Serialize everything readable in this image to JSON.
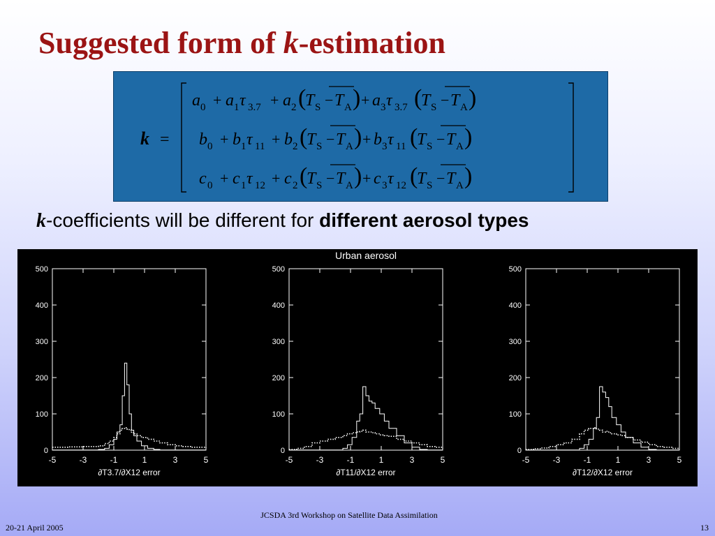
{
  "slide": {
    "title_prefix": "Suggested form of ",
    "title_var": "k",
    "title_suffix": "-estimation",
    "subtitle_var": "k",
    "subtitle_text": "-coefficients will be different for ",
    "subtitle_bold": "different aerosol types",
    "footer_center": "JCSDA 3rd Workshop on Satellite Data Assimilation",
    "footer_left": "20-21 April 2005",
    "footer_right": "13",
    "colors": {
      "title": "#9b1414",
      "equation_box": "#1e6aa6"
    }
  },
  "equation": {
    "lhs": "k =",
    "rows": [
      {
        "coef": [
          "a",
          "a",
          "a",
          "a"
        ],
        "tau_sub": "3.7"
      },
      {
        "coef": [
          "b",
          "b",
          "b",
          "b"
        ],
        "tau_sub": "11"
      },
      {
        "coef": [
          "c",
          "c",
          "c",
          "c"
        ],
        "tau_sub": "12"
      }
    ],
    "subscripts": [
      "0",
      "1",
      "2",
      "3"
    ],
    "ts": "T",
    "ts_sub": "S",
    "ta": "T",
    "ta_sub": "A",
    "tau": "τ"
  },
  "chart_data": [
    {
      "type": "histogram",
      "title": "",
      "xlabel": "∂T3.7/∂X12 error",
      "x_ticks": [
        "-5",
        "-3",
        "-1",
        "1",
        "3",
        "5"
      ],
      "y_ticks": [
        "0",
        "100",
        "200",
        "300",
        "400",
        "500"
      ],
      "xlim": [
        -5,
        5
      ],
      "ylim": [
        0,
        500
      ],
      "series": [
        {
          "style": "solid",
          "x": [
            -5.0,
            -4.5,
            -4.0,
            -3.5,
            -3.0,
            -2.5,
            -2.0,
            -1.6,
            -1.3,
            -1.0,
            -0.8,
            -0.6,
            -0.45,
            -0.3,
            -0.15,
            0.0,
            0.15,
            0.3,
            0.5,
            0.8,
            1.2,
            1.6,
            2.0,
            2.5,
            3.0,
            3.5,
            4.0,
            4.5,
            5.0
          ],
          "y": [
            0,
            0,
            0,
            0,
            0,
            0,
            2,
            5,
            15,
            30,
            50,
            70,
            150,
            240,
            180,
            100,
            55,
            40,
            25,
            12,
            5,
            2,
            0,
            0,
            0,
            0,
            0,
            0,
            0
          ]
        },
        {
          "style": "dotted",
          "x": [
            -5.0,
            -4.5,
            -4.0,
            -3.5,
            -3.0,
            -2.5,
            -2.0,
            -1.6,
            -1.3,
            -1.0,
            -0.8,
            -0.6,
            -0.45,
            -0.3,
            -0.15,
            0.0,
            0.15,
            0.3,
            0.5,
            0.8,
            1.2,
            1.6,
            2.0,
            2.5,
            3.0,
            3.5,
            4.0,
            4.5,
            5.0
          ],
          "y": [
            8,
            8,
            9,
            9,
            10,
            10,
            12,
            18,
            25,
            35,
            45,
            55,
            60,
            62,
            58,
            55,
            48,
            45,
            40,
            35,
            30,
            25,
            20,
            15,
            12,
            10,
            8,
            8,
            6
          ]
        }
      ]
    },
    {
      "type": "histogram",
      "title": "Urban aerosol",
      "xlabel": "∂T11/∂X12 error",
      "x_ticks": [
        "-5",
        "-3",
        "-1",
        "1",
        "3",
        "5"
      ],
      "y_ticks": [
        "0",
        "100",
        "200",
        "300",
        "400",
        "500"
      ],
      "xlim": [
        -5,
        5
      ],
      "ylim": [
        0,
        500
      ],
      "series": [
        {
          "style": "solid",
          "x": [
            -5.0,
            -4.5,
            -4.0,
            -3.5,
            -3.0,
            -2.5,
            -2.0,
            -1.5,
            -1.2,
            -0.9,
            -0.6,
            -0.4,
            -0.2,
            0.0,
            0.2,
            0.4,
            0.6,
            0.9,
            1.2,
            1.5,
            2.0,
            2.5,
            3.0,
            3.5,
            4.0,
            4.5,
            5.0
          ],
          "y": [
            0,
            0,
            0,
            0,
            0,
            0,
            0,
            5,
            15,
            35,
            80,
            100,
            175,
            150,
            135,
            130,
            115,
            100,
            80,
            60,
            40,
            20,
            8,
            2,
            0,
            0,
            0
          ]
        },
        {
          "style": "dotted",
          "x": [
            -5.0,
            -4.5,
            -4.0,
            -3.5,
            -3.0,
            -2.5,
            -2.0,
            -1.5,
            -1.2,
            -0.9,
            -0.6,
            -0.4,
            -0.2,
            0.0,
            0.2,
            0.4,
            0.6,
            0.9,
            1.2,
            1.5,
            2.0,
            2.5,
            3.0,
            3.5,
            4.0,
            4.5,
            5.0
          ],
          "y": [
            2,
            5,
            10,
            20,
            25,
            30,
            35,
            40,
            45,
            48,
            50,
            52,
            55,
            50,
            50,
            48,
            45,
            42,
            40,
            38,
            30,
            25,
            20,
            15,
            10,
            8,
            5
          ]
        }
      ]
    },
    {
      "type": "histogram",
      "title": "",
      "xlabel": "∂T12/∂X12 error",
      "x_ticks": [
        "-5",
        "-3",
        "-1",
        "1",
        "3",
        "5"
      ],
      "y_ticks": [
        "0",
        "100",
        "200",
        "300",
        "400",
        "500"
      ],
      "xlim": [
        -5,
        5
      ],
      "ylim": [
        0,
        500
      ],
      "series": [
        {
          "style": "solid",
          "x": [
            -5.0,
            -4.5,
            -4.0,
            -3.5,
            -3.0,
            -2.5,
            -2.0,
            -1.5,
            -1.2,
            -0.9,
            -0.6,
            -0.4,
            -0.2,
            0.0,
            0.2,
            0.4,
            0.6,
            0.9,
            1.2,
            1.5,
            2.0,
            2.5,
            3.0,
            3.5,
            4.0,
            4.5,
            5.0
          ],
          "y": [
            0,
            0,
            0,
            0,
            0,
            0,
            0,
            5,
            15,
            30,
            60,
            90,
            175,
            160,
            145,
            120,
            90,
            70,
            50,
            35,
            20,
            8,
            2,
            0,
            0,
            0,
            0
          ]
        },
        {
          "style": "dotted",
          "x": [
            -5.0,
            -4.5,
            -4.0,
            -3.5,
            -3.0,
            -2.5,
            -2.0,
            -1.5,
            -1.2,
            -0.9,
            -0.6,
            -0.4,
            -0.2,
            0.0,
            0.2,
            0.4,
            0.6,
            0.9,
            1.2,
            1.5,
            2.0,
            2.5,
            3.0,
            3.5,
            4.0,
            4.5,
            5.0
          ],
          "y": [
            2,
            4,
            6,
            10,
            15,
            20,
            30,
            45,
            55,
            60,
            62,
            58,
            55,
            50,
            52,
            48,
            45,
            42,
            40,
            35,
            28,
            22,
            15,
            10,
            8,
            5,
            3
          ]
        }
      ]
    }
  ]
}
